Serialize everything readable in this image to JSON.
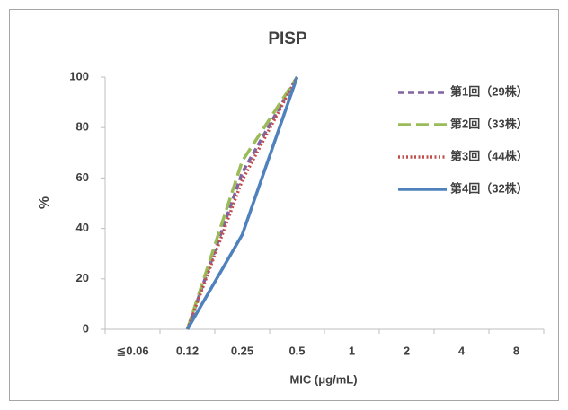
{
  "chart_data": {
    "type": "line",
    "title": "PISP",
    "xlabel": "MIC (μg/mL)",
    "ylabel": "%",
    "categories": [
      "≦0.06",
      "0.12",
      "0.25",
      "0.5",
      "1",
      "2",
      "4",
      "8"
    ],
    "series": [
      {
        "name": "第1回（29株）",
        "color": "#8064a2",
        "style": "dash",
        "values": [
          null,
          0,
          62.1,
          100,
          null,
          null,
          null,
          null
        ]
      },
      {
        "name": "第2回（33株）",
        "color": "#9bbb59",
        "style": "longdash",
        "values": [
          null,
          0,
          66.7,
          100,
          null,
          null,
          null,
          null
        ]
      },
      {
        "name": "第3回（44株）",
        "color": "#c0504d",
        "style": "dot",
        "values": [
          null,
          0,
          59.1,
          100,
          null,
          null,
          null,
          null
        ]
      },
      {
        "name": "第4回（32株）",
        "color": "#4f81bd",
        "style": "solid",
        "values": [
          null,
          0,
          37.5,
          100,
          null,
          null,
          null,
          null
        ]
      }
    ],
    "ylim": [
      0,
      100
    ],
    "yticks": [
      0,
      20,
      40,
      60,
      80,
      100
    ],
    "legend": "right"
  }
}
